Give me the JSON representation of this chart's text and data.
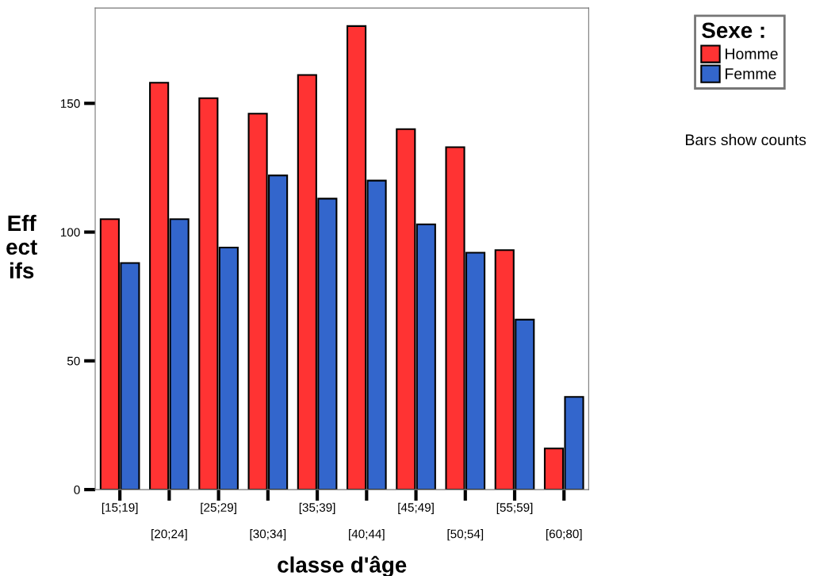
{
  "chart_data": {
    "type": "bar",
    "xlabel": "classe d'âge",
    "ylabel": "Eff\nect\nifs",
    "categories": [
      "[15;19]",
      "[20;24]",
      "[25;29]",
      "[30;34]",
      "[35;39]",
      "[40;44]",
      "[45;49]",
      "[50;54]",
      "[55;59]",
      "[60;80]"
    ],
    "series": [
      {
        "name": "Homme",
        "color": "#ff3333",
        "values": [
          105,
          158,
          152,
          146,
          161,
          180,
          140,
          133,
          93,
          16
        ]
      },
      {
        "name": "Femme",
        "color": "#3366cc",
        "values": [
          88,
          105,
          94,
          122,
          113,
          120,
          103,
          92,
          66,
          36
        ]
      }
    ],
    "ylim": [
      0,
      187
    ],
    "yticks": [
      0,
      50,
      100,
      150
    ],
    "grid": false,
    "legend": "top right",
    "legend_title": "Sexe :",
    "annotations": [
      "Bars show counts"
    ]
  }
}
